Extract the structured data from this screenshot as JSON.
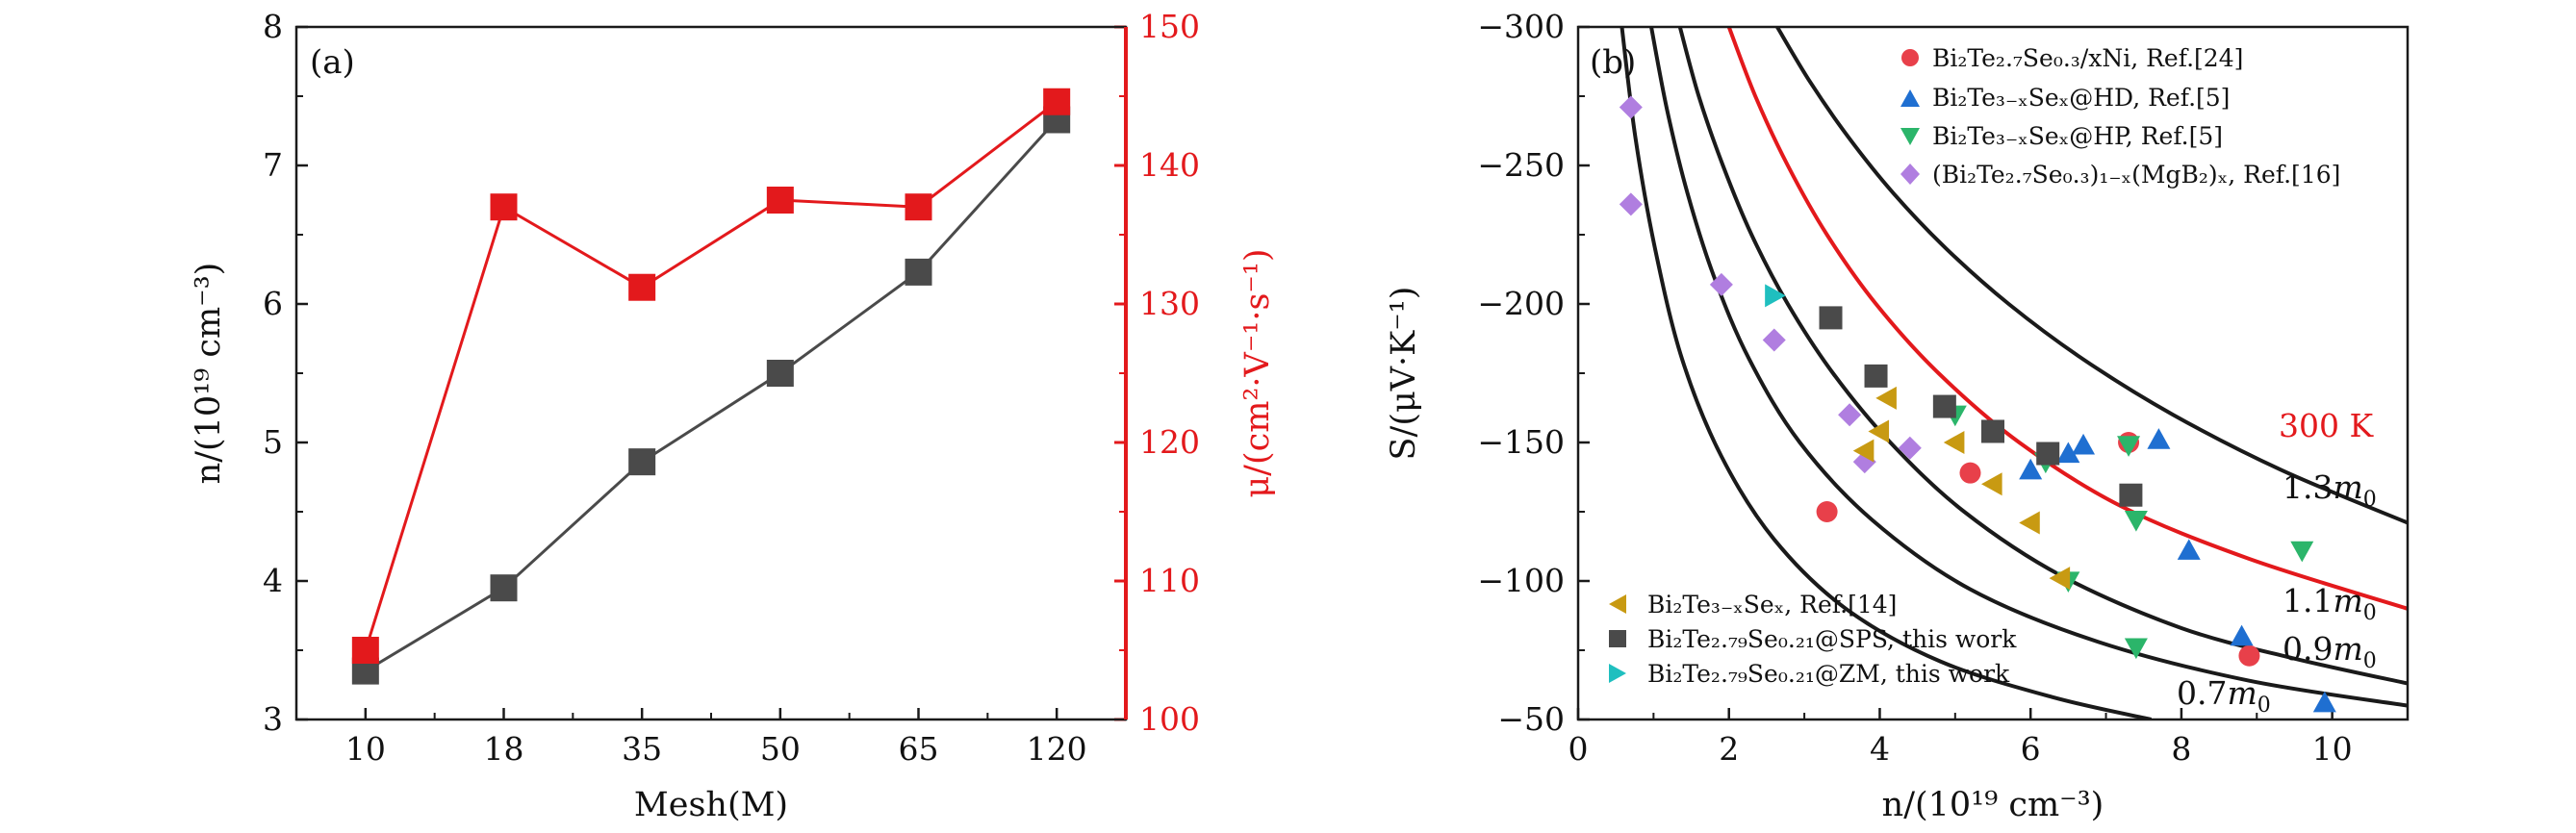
{
  "colors": {
    "black": "#1a1a1a",
    "red": "#e3191c",
    "gray_square": "#4a4a4a",
    "circle_red": "#e8404a",
    "triangle_blue": "#1f6fd1",
    "triangle_green": "#2bb56a",
    "diamond_purple": "#b07ee0",
    "triangle_gold": "#c89a12",
    "triangle_cyan": "#1fbfbf"
  },
  "chart_data": [
    {
      "id": "a",
      "type": "line",
      "panel_label": "(a)",
      "xlabel": "Mesh(M)",
      "ylabel_left": "n/(10¹⁹ cm⁻³)",
      "ylabel_right": "μ/(cm²·V⁻¹·s⁻¹)",
      "categories": [
        "10",
        "18",
        "35",
        "50",
        "65",
        "120"
      ],
      "left_ylim": [
        3,
        8
      ],
      "left_yticks": [
        "3",
        "4",
        "5",
        "6",
        "7",
        "8"
      ],
      "right_ylim": [
        100,
        150
      ],
      "right_yticks": [
        "100",
        "110",
        "120",
        "130",
        "140",
        "150"
      ],
      "series": [
        {
          "name": "n",
          "axis": "left",
          "color": "#4a4a4a",
          "marker": "square",
          "values": [
            3.35,
            3.95,
            4.86,
            5.5,
            6.23,
            7.33
          ]
        },
        {
          "name": "mu",
          "axis": "right",
          "color": "#e3191c",
          "marker": "square",
          "values": [
            105,
            137,
            131.2,
            137.5,
            137,
            144.6
          ]
        }
      ]
    },
    {
      "id": "b",
      "type": "scatter",
      "panel_label": "(b)",
      "xlabel": "n/(10¹⁹ cm⁻³)",
      "ylabel": "S/(μV·K⁻¹)",
      "xlim": [
        0,
        11
      ],
      "xticks": [
        "0",
        "2",
        "4",
        "6",
        "8",
        "10"
      ],
      "ylim": [
        -50,
        -300
      ],
      "yticks": [
        "−50",
        "−100",
        "−150",
        "−200",
        "−250",
        "−300"
      ],
      "temperature_label": "300 K",
      "curves": [
        {
          "label": "1.3m0",
          "mass_label": "1.3",
          "color": "#1a1a1a",
          "points": [
            [
              2.64,
              -300
            ],
            [
              3.08,
              -280
            ],
            [
              3.59,
              -260
            ],
            [
              4.18,
              -240
            ],
            [
              4.88,
              -220
            ],
            [
              5.71,
              -200
            ],
            [
              6.7,
              -180
            ],
            [
              7.89,
              -160
            ],
            [
              9.33,
              -140
            ],
            [
              11.0,
              -121
            ]
          ]
        },
        {
          "label": "1.1m0",
          "mass_label": "1.1",
          "color": "#1a1a1a",
          "points": [
            [
              1.35,
              -300
            ],
            [
              1.6,
              -275
            ],
            [
              1.92,
              -250
            ],
            [
              2.3,
              -225
            ],
            [
              2.78,
              -200
            ],
            [
              3.38,
              -175
            ],
            [
              4.14,
              -150
            ],
            [
              5.12,
              -125
            ],
            [
              6.4,
              -102
            ],
            [
              8.0,
              -83
            ],
            [
              9.5,
              -72
            ],
            [
              11.0,
              -63
            ]
          ]
        },
        {
          "label": "red",
          "mass_label": "",
          "color": "#e3191c",
          "points": [
            [
              2.0,
              -300
            ],
            [
              2.35,
              -275
            ],
            [
              2.78,
              -250
            ],
            [
              3.3,
              -225
            ],
            [
              3.95,
              -200
            ],
            [
              4.78,
              -175
            ],
            [
              5.85,
              -150
            ],
            [
              7.2,
              -127
            ],
            [
              8.9,
              -108
            ],
            [
              11.0,
              -90
            ]
          ]
        },
        {
          "label": "0.9m0",
          "mass_label": "0.9",
          "color": "#1a1a1a",
          "points": [
            [
              0.97,
              -300
            ],
            [
              1.18,
              -270
            ],
            [
              1.45,
              -240
            ],
            [
              1.8,
              -210
            ],
            [
              2.27,
              -180
            ],
            [
              2.94,
              -150
            ],
            [
              3.9,
              -122
            ],
            [
              5.2,
              -97
            ],
            [
              6.9,
              -78
            ],
            [
              8.9,
              -64
            ],
            [
              11.0,
              -55
            ]
          ]
        },
        {
          "label": "0.7m0",
          "mass_label": "0.7",
          "color": "#1a1a1a",
          "points": [
            [
              0.58,
              -300
            ],
            [
              0.76,
              -260
            ],
            [
              1.02,
              -220
            ],
            [
              1.38,
              -180
            ],
            [
              1.9,
              -145
            ],
            [
              2.6,
              -115
            ],
            [
              3.55,
              -90
            ],
            [
              4.8,
              -71
            ],
            [
              6.3,
              -58
            ],
            [
              7.6,
              -50
            ]
          ]
        }
      ],
      "legend_top": [
        {
          "marker": "circle",
          "color": "#e8404a",
          "text": "Bi₂Te₂.₇Se₀.₃/xNi, Ref.[24]"
        },
        {
          "marker": "triangle-up",
          "color": "#1f6fd1",
          "text": "Bi₂Te₃₋ₓSeₓ@HD, Ref.[5]"
        },
        {
          "marker": "triangle-down",
          "color": "#2bb56a",
          "text": "Bi₂Te₃₋ₓSeₓ@HP, Ref.[5]"
        },
        {
          "marker": "diamond",
          "color": "#b07ee0",
          "text": "(Bi₂Te₂.₇Se₀.₃)₁₋ₓ(MgB₂)ₓ, Ref.[16]"
        }
      ],
      "legend_bottom": [
        {
          "marker": "triangle-left",
          "color": "#c89a12",
          "text": "Bi₂Te₃₋ₓSeₓ, Ref.[14]"
        },
        {
          "marker": "square",
          "color": "#4a4a4a",
          "text": "Bi₂Te₂.₇₉Se₀.₂₁@SPS, this work"
        },
        {
          "marker": "triangle-right",
          "color": "#1fbfbf",
          "text": "Bi₂Te₂.₇₉Se₀.₂₁@ZM, this work"
        }
      ],
      "scatter_series": [
        {
          "name": "Ni",
          "marker": "circle",
          "color": "#e8404a",
          "points": [
            [
              3.3,
              -125
            ],
            [
              5.2,
              -139
            ],
            [
              7.3,
              -150
            ],
            [
              8.9,
              -73
            ]
          ]
        },
        {
          "name": "HD",
          "marker": "triangle-up",
          "color": "#1f6fd1",
          "points": [
            [
              6.0,
              -140
            ],
            [
              6.5,
              -146
            ],
            [
              6.7,
              -149
            ],
            [
              7.7,
              -151
            ],
            [
              8.1,
              -111
            ],
            [
              8.8,
              -80
            ],
            [
              9.9,
              -56
            ]
          ]
        },
        {
          "name": "HP",
          "marker": "triangle-down",
          "color": "#2bb56a",
          "points": [
            [
              5.0,
              -160
            ],
            [
              6.2,
              -143
            ],
            [
              6.5,
              -100
            ],
            [
              7.3,
              -149
            ],
            [
              7.4,
              -122
            ],
            [
              7.4,
              -76
            ],
            [
              9.6,
              -111
            ]
          ]
        },
        {
          "name": "MgB2",
          "marker": "diamond",
          "color": "#b07ee0",
          "points": [
            [
              0.7,
              -271
            ],
            [
              0.7,
              -236
            ],
            [
              1.9,
              -207
            ],
            [
              2.6,
              -187
            ],
            [
              3.6,
              -160
            ],
            [
              3.8,
              -143
            ],
            [
              4.4,
              -148
            ]
          ]
        },
        {
          "name": "Ref14",
          "marker": "triangle-left",
          "color": "#c89a12",
          "points": [
            [
              3.8,
              -147
            ],
            [
              4.0,
              -154
            ],
            [
              4.1,
              -166
            ],
            [
              5.0,
              -150
            ],
            [
              5.5,
              -135
            ],
            [
              6.0,
              -121
            ],
            [
              6.4,
              -101
            ]
          ]
        },
        {
          "name": "SPS",
          "marker": "square",
          "color": "#4a4a4a",
          "points": [
            [
              3.35,
              -195
            ],
            [
              3.95,
              -174
            ],
            [
              4.86,
              -163
            ],
            [
              5.5,
              -154
            ],
            [
              6.23,
              -146
            ],
            [
              7.33,
              -131
            ]
          ]
        },
        {
          "name": "ZM",
          "marker": "triangle-right",
          "color": "#1fbfbf",
          "points": [
            [
              2.6,
              -203
            ]
          ]
        }
      ]
    }
  ]
}
